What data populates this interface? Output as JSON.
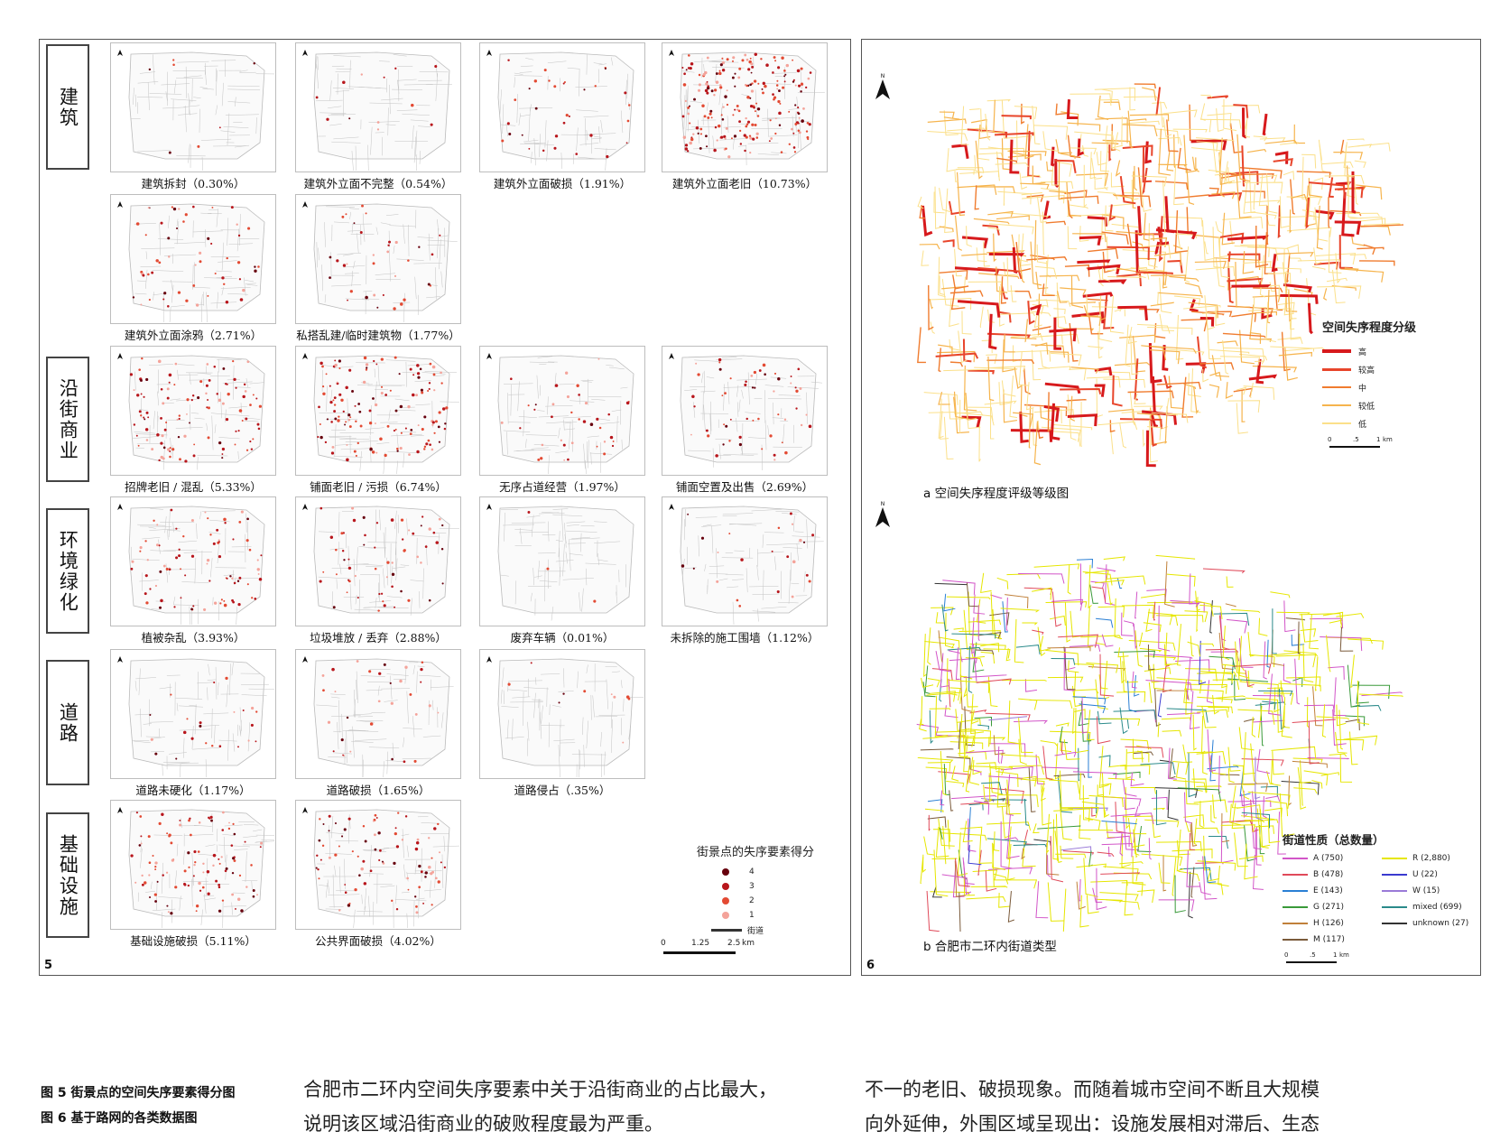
{
  "fig5": {
    "number": "5",
    "categories": [
      {
        "label": "建筑",
        "top": 3
      },
      {
        "label": "沿街商业",
        "top": 3
      },
      {
        "label": "环境绿化",
        "top": 3
      },
      {
        "label": "道路",
        "top": 3
      },
      {
        "label": "基础设施",
        "top": 3
      }
    ],
    "maps": [
      {
        "caption": "建筑拆封（0.30%）",
        "density": 0.02
      },
      {
        "caption": "建筑外立面不完整（0.54%）",
        "density": 0.04
      },
      {
        "caption": "建筑外立面破损（1.91%）",
        "density": 0.12
      },
      {
        "caption": "建筑外立面老旧（10.73%）",
        "density": 0.8
      },
      {
        "caption": "建筑外立面涂鸦（2.71%）",
        "density": 0.2
      },
      {
        "caption": "私搭乱建/临时建筑物（1.77%）",
        "density": 0.12
      },
      {
        "caption": "招牌老旧 / 混乱（5.33%）",
        "density": 0.4
      },
      {
        "caption": "铺面老旧 / 污损（6.74%）",
        "density": 0.5
      },
      {
        "caption": "无序占道经营（1.97%）",
        "density": 0.14
      },
      {
        "caption": "铺面空置及出售（2.69%）",
        "density": 0.2
      },
      {
        "caption": "植被杂乱（3.93%）",
        "density": 0.3
      },
      {
        "caption": "垃圾堆放 / 丢弃（2.88%）",
        "density": 0.22
      },
      {
        "caption": "废弃车辆（0.01%）",
        "density": 0.005
      },
      {
        "caption": "未拆除的施工围墙（1.12%）",
        "density": 0.08
      },
      {
        "caption": "道路未硬化（1.17%）",
        "density": 0.08
      },
      {
        "caption": "道路破损（1.65%）",
        "density": 0.11
      },
      {
        "caption": "道路侵占（.35%）",
        "density": 0.03
      },
      {
        "caption": "基础设施破损（5.11%）",
        "density": 0.38
      },
      {
        "caption": "公共界面破损（4.02%）",
        "density": 0.3
      }
    ],
    "legend": {
      "title": "街景点的失序要素得分",
      "items": [
        {
          "label": "4",
          "color": "#67000d"
        },
        {
          "label": "3",
          "color": "#b8161c"
        },
        {
          "label": "2",
          "color": "#e34a33"
        },
        {
          "label": "1",
          "color": "#f4a39a"
        }
      ],
      "street_label": "街道"
    },
    "scale": {
      "ticks": [
        "0",
        "1.25",
        "2.5"
      ],
      "unit": "km"
    },
    "north": "N"
  },
  "fig6": {
    "number": "6",
    "north": "N",
    "a": {
      "caption": "a 空间失序程度评级等级图",
      "legend_title": "空间失序程度分级",
      "levels": [
        {
          "label": "高",
          "color": "#d7191c"
        },
        {
          "label": "较高",
          "color": "#e8452b"
        },
        {
          "label": "中",
          "color": "#f07c2f"
        },
        {
          "label": "较低",
          "color": "#f6b44d"
        },
        {
          "label": "低",
          "color": "#fbe08a"
        }
      ],
      "scale": {
        "ticks": [
          "0",
          ".5",
          "1"
        ],
        "unit": "km"
      }
    },
    "b": {
      "caption": "b 合肥市二环内街道类型",
      "legend_title": "街道性质（总数量）",
      "types": [
        {
          "label": "A (750)",
          "color": "#d255c8"
        },
        {
          "label": "R (2,880)",
          "color": "#e6e600"
        },
        {
          "label": "B (478)",
          "color": "#e04a5a"
        },
        {
          "label": "U (22)",
          "color": "#3a3ad0"
        },
        {
          "label": "E (143)",
          "color": "#2a7fd4"
        },
        {
          "label": "W (15)",
          "color": "#9a7ad8"
        },
        {
          "label": "G (271)",
          "color": "#3a9a3a"
        },
        {
          "label": "mixed (699)",
          "color": "#2a8a8a"
        },
        {
          "label": "H (126)",
          "color": "#c0803a"
        },
        {
          "label": "unknown (27)",
          "color": "#333333"
        },
        {
          "label": "M (117)",
          "color": "#7a5a3a"
        }
      ],
      "scale": {
        "ticks": [
          "0",
          ".5",
          "1"
        ],
        "unit": "km"
      }
    }
  },
  "figure_captions": {
    "line1": "图 5 街景点的空间失序要素得分图",
    "line2": "图 6 基于路网的各类数据图"
  },
  "body_text": {
    "col1_line1": "合肥市二环内空间失序要素中关于沿街商业的占比最大，",
    "col1_line2": "说明该区域沿街商业的破败程度最为严重。",
    "col2_line1": "不一的老旧、破损现象。而随着城市空间不断且大规模",
    "col2_line2": "向外延伸，外围区域呈现出：设施发展相对滞后、生态"
  }
}
